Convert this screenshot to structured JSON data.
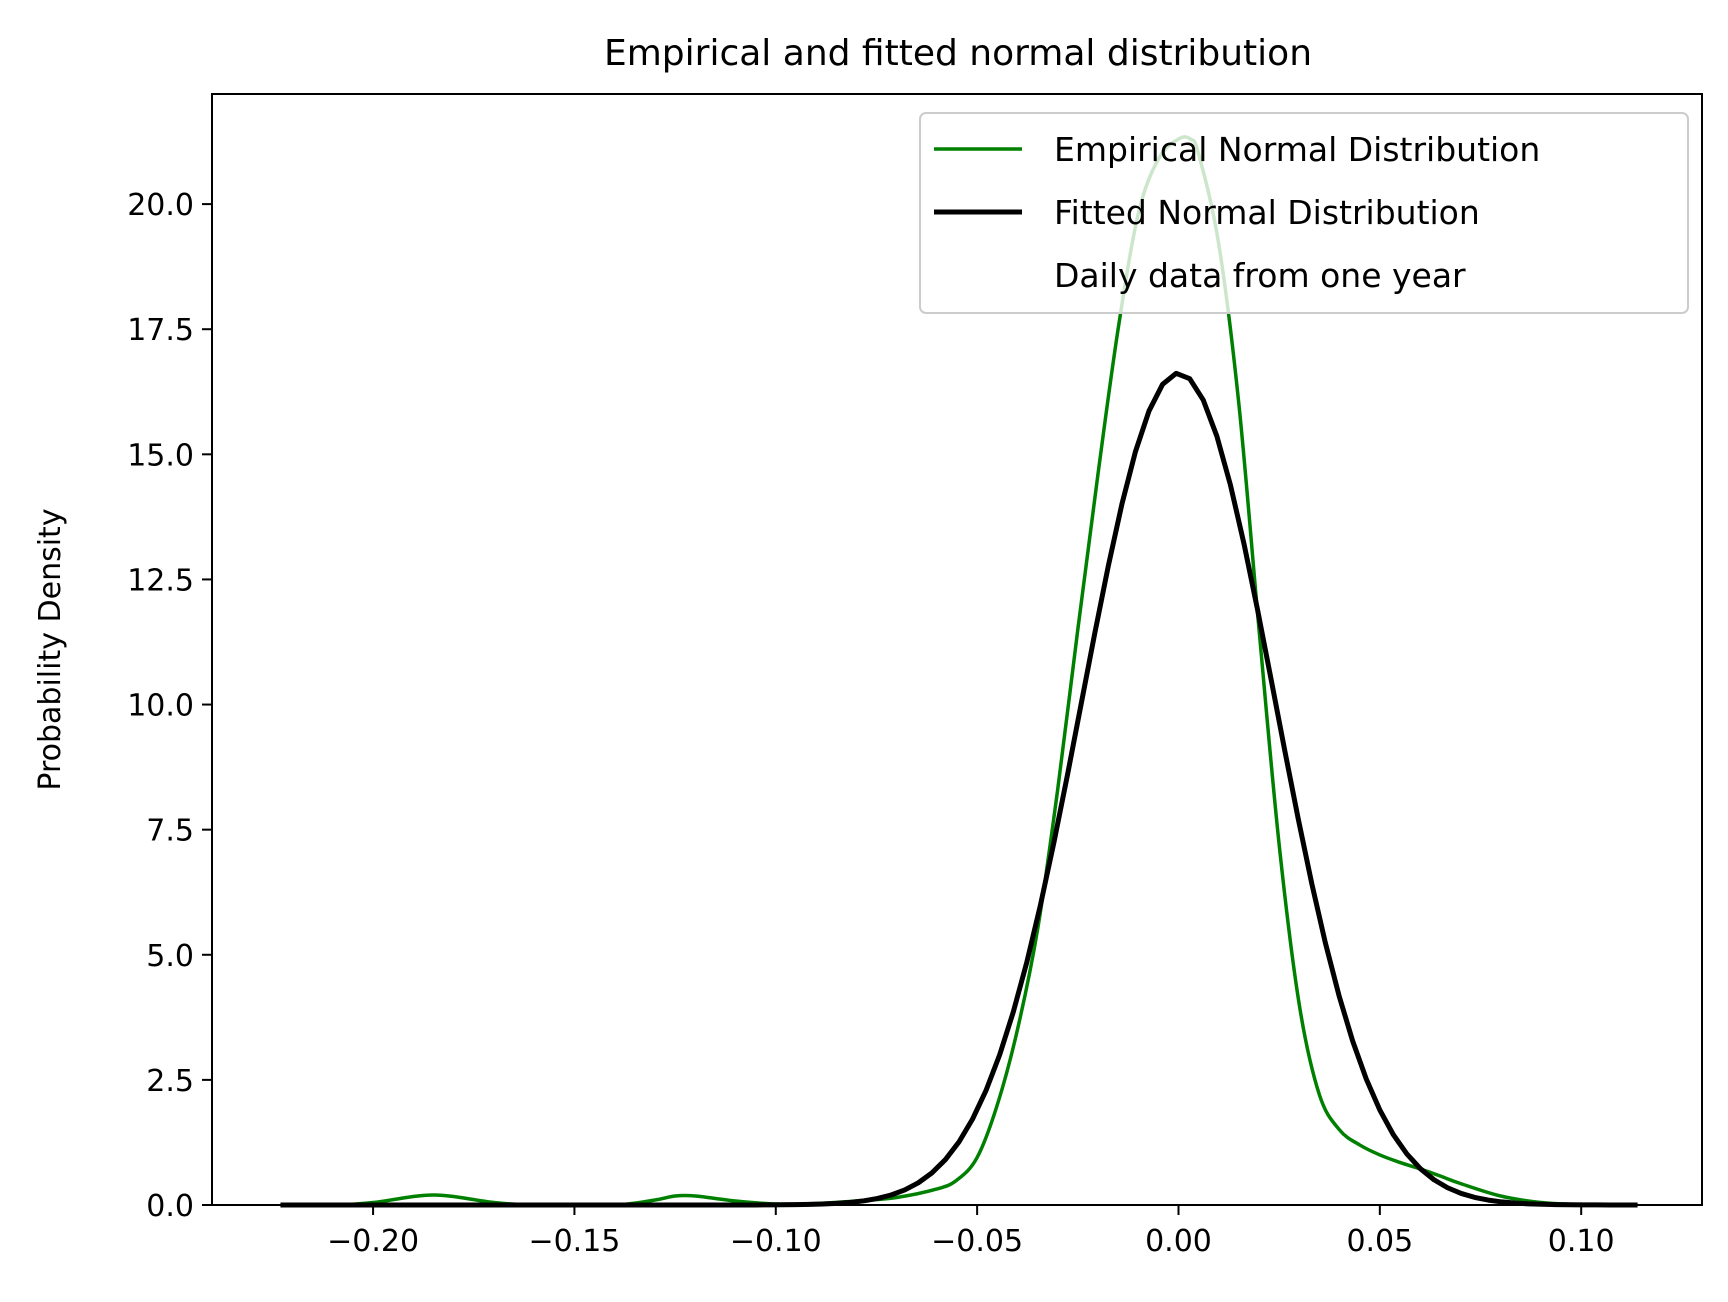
{
  "chart_data": {
    "type": "line",
    "title": "Empirical and fitted normal distribution",
    "xlabel": "",
    "ylabel": "Probability Density",
    "xlim": [
      -0.24,
      0.13
    ],
    "ylim": [
      0,
      22.2
    ],
    "xticks": [
      -0.2,
      -0.15,
      -0.1,
      -0.05,
      0.0,
      0.05,
      0.1
    ],
    "xtick_labels": [
      "−0.20",
      "−0.15",
      "−0.10",
      "−0.05",
      "0.00",
      "0.05",
      "0.10"
    ],
    "yticks": [
      0.0,
      2.5,
      5.0,
      7.5,
      10.0,
      12.5,
      15.0,
      17.5,
      20.0
    ],
    "ytick_labels": [
      "0.0",
      "2.5",
      "5.0",
      "7.5",
      "10.0",
      "12.5",
      "15.0",
      "17.5",
      "20.0"
    ],
    "grid": false,
    "legend": {
      "placement": "upper-right",
      "entries": [
        {
          "label": "Empirical Normal Distribution",
          "color": "#008000"
        },
        {
          "label": "Fitted Normal Distribution",
          "color": "#000000"
        },
        {
          "label": "Daily data from one year",
          "color": "none"
        }
      ]
    },
    "series": [
      {
        "name": "Empirical Normal Distribution",
        "color": "#008000",
        "x": [
          -0.223,
          -0.21,
          -0.2,
          -0.19,
          -0.185,
          -0.18,
          -0.17,
          -0.16,
          -0.14,
          -0.13,
          -0.125,
          -0.12,
          -0.11,
          -0.1,
          -0.09,
          -0.08,
          -0.07,
          -0.06,
          -0.055,
          -0.05,
          -0.045,
          -0.04,
          -0.035,
          -0.03,
          -0.025,
          -0.02,
          -0.015,
          -0.01,
          -0.005,
          0.0,
          0.003,
          0.005,
          0.01,
          0.015,
          0.02,
          0.025,
          0.03,
          0.035,
          0.04,
          0.045,
          0.05,
          0.055,
          0.06,
          0.065,
          0.07,
          0.08,
          0.09,
          0.1,
          0.114
        ],
        "y": [
          0.0,
          0.0,
          0.05,
          0.17,
          0.2,
          0.17,
          0.05,
          0.0,
          0.0,
          0.1,
          0.18,
          0.18,
          0.08,
          0.02,
          0.03,
          0.08,
          0.15,
          0.32,
          0.5,
          0.95,
          2.0,
          3.5,
          5.5,
          8.3,
          11.5,
          14.6,
          17.5,
          19.8,
          20.9,
          21.3,
          21.3,
          21.0,
          19.2,
          16.0,
          11.5,
          7.2,
          4.0,
          2.2,
          1.5,
          1.2,
          1.0,
          0.85,
          0.72,
          0.58,
          0.43,
          0.18,
          0.05,
          0.01,
          0.0
        ]
      },
      {
        "name": "Fitted Normal Distribution",
        "mean": 0.0,
        "std": 0.024,
        "color": "#000000",
        "x_range": [
          -0.223,
          0.114
        ]
      }
    ]
  }
}
